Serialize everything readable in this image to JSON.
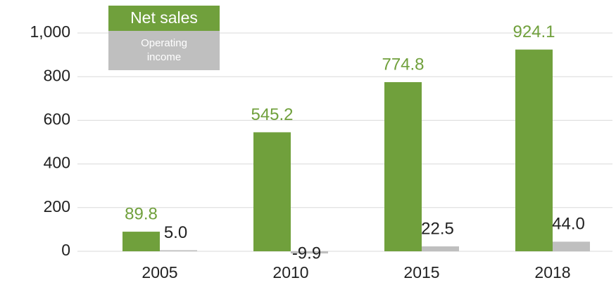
{
  "chart_data": {
    "type": "bar",
    "categories": [
      "2005",
      "2010",
      "2015",
      "2018"
    ],
    "series": [
      {
        "name": "Net sales",
        "color": "#70a03c",
        "values": [
          89.8,
          545.2,
          774.8,
          924.1
        ],
        "value_labels": [
          "89.8",
          "545.2",
          "774.8",
          "924.1"
        ]
      },
      {
        "name": "Operating income",
        "color": "#bfbfbf",
        "values": [
          5.0,
          -9.9,
          22.5,
          44.0
        ],
        "value_labels": [
          "5.0",
          "-9.9",
          "22.5",
          "44.0"
        ]
      }
    ],
    "ylim": [
      0,
      1000
    ],
    "yticks": [
      0,
      200,
      400,
      600,
      800,
      {
        "value": 1000,
        "label": "1,000"
      }
    ],
    "grid": true,
    "legend": "upper left"
  }
}
